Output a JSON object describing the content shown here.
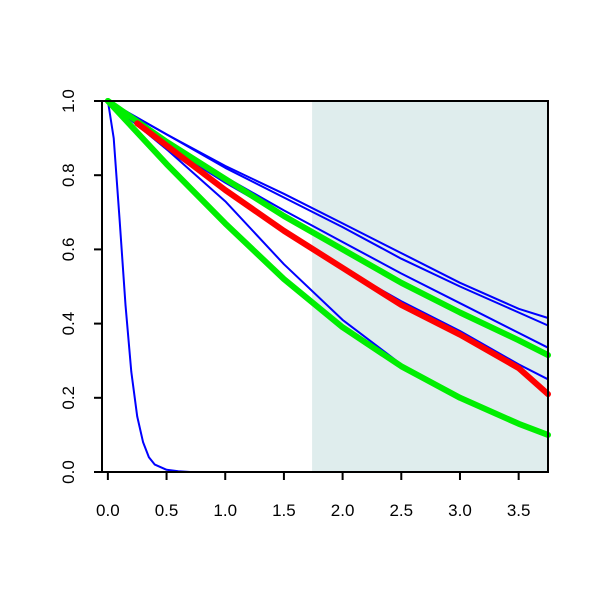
{
  "chart_data": {
    "type": "line",
    "title": "",
    "xlabel": "",
    "ylabel": "",
    "xlim": [
      -0.05,
      3.75
    ],
    "ylim": [
      0,
      1
    ],
    "x_ticks": [
      "0.0",
      "0.5",
      "1.0",
      "1.5",
      "2.0",
      "2.5",
      "3.0",
      "3.5"
    ],
    "y_ticks": [
      "0.0",
      "0.2",
      "0.4",
      "0.6",
      "0.8",
      "1.0"
    ],
    "grid": false,
    "shaded_region": {
      "x_start": 1.74,
      "x_end": 3.75,
      "color": "#dfeded"
    },
    "series": [
      {
        "color": "#0000ff",
        "width": "thin",
        "x": [
          0,
          0.05,
          0.1,
          0.15,
          0.2,
          0.25,
          0.3,
          0.35,
          0.4,
          0.5,
          0.6,
          0.7,
          0.8,
          1.0,
          1.5,
          2.0,
          2.5,
          3.0,
          3.5,
          3.75
        ],
        "values": [
          1.0,
          0.9,
          0.68,
          0.45,
          0.27,
          0.15,
          0.08,
          0.04,
          0.02,
          0.006,
          0.002,
          0.0,
          0.0,
          0.0,
          0.0,
          0.0,
          0.0,
          0.0,
          0.0,
          0.0
        ]
      },
      {
        "color": "#0000ff",
        "width": "thin",
        "x": [
          0,
          0.5,
          1.0,
          1.5,
          2.0,
          2.5,
          3.0,
          3.5,
          3.75
        ],
        "values": [
          1.0,
          0.91,
          0.825,
          0.75,
          0.67,
          0.59,
          0.51,
          0.44,
          0.415
        ]
      },
      {
        "color": "#0000ff",
        "width": "thin",
        "x": [
          0,
          0.5,
          1.0,
          1.5,
          2.0,
          2.5,
          3.0,
          3.5,
          3.75
        ],
        "values": [
          1.0,
          0.91,
          0.82,
          0.74,
          0.66,
          0.575,
          0.5,
          0.43,
          0.395
        ]
      },
      {
        "color": "#0000ff",
        "width": "thin",
        "x": [
          0,
          0.5,
          1.0,
          1.5,
          2.0,
          2.5,
          3.0,
          3.5,
          3.75
        ],
        "values": [
          1.0,
          0.89,
          0.795,
          0.705,
          0.62,
          0.535,
          0.455,
          0.375,
          0.335
        ]
      },
      {
        "color": "#0000ff",
        "width": "thin",
        "x": [
          0,
          0.5,
          1.0,
          1.5,
          2.0,
          2.5,
          3.0,
          3.5,
          3.75
        ],
        "values": [
          1.0,
          0.88,
          0.78,
          0.69,
          0.6,
          0.515,
          0.435,
          0.355,
          0.315
        ]
      },
      {
        "color": "#0000ff",
        "width": "thin",
        "x": [
          0,
          0.5,
          1.0,
          1.5,
          2.0,
          2.5,
          3.0,
          3.5,
          3.75
        ],
        "values": [
          1.0,
          0.87,
          0.76,
          0.65,
          0.55,
          0.46,
          0.38,
          0.29,
          0.25
        ]
      },
      {
        "color": "#0000ff",
        "width": "thin",
        "x": [
          0,
          0.5,
          1.0,
          1.5,
          2.0,
          2.5,
          2.8
        ],
        "values": [
          1.0,
          0.87,
          0.73,
          0.56,
          0.41,
          0.29,
          0.235
        ]
      },
      {
        "color": "#00ee00",
        "width": "thick",
        "x": [
          0,
          0.5,
          1.0,
          1.5,
          2.0,
          2.5,
          3.0,
          3.5,
          3.75
        ],
        "values": [
          1.0,
          0.89,
          0.79,
          0.69,
          0.6,
          0.51,
          0.43,
          0.355,
          0.315
        ]
      },
      {
        "color": "#00ee00",
        "width": "thick",
        "x": [
          0,
          0.5,
          1.0,
          1.5,
          2.0,
          2.5,
          3.0,
          3.5,
          3.75
        ],
        "values": [
          1.0,
          0.83,
          0.67,
          0.52,
          0.39,
          0.285,
          0.2,
          0.13,
          0.1
        ]
      },
      {
        "color": "#ff0000",
        "width": "thick",
        "x": [
          0.25,
          0.5,
          1.0,
          1.5,
          2.0,
          2.5,
          3.0,
          3.5,
          3.75
        ],
        "values": [
          0.94,
          0.88,
          0.76,
          0.65,
          0.55,
          0.45,
          0.37,
          0.28,
          0.21
        ]
      }
    ]
  }
}
